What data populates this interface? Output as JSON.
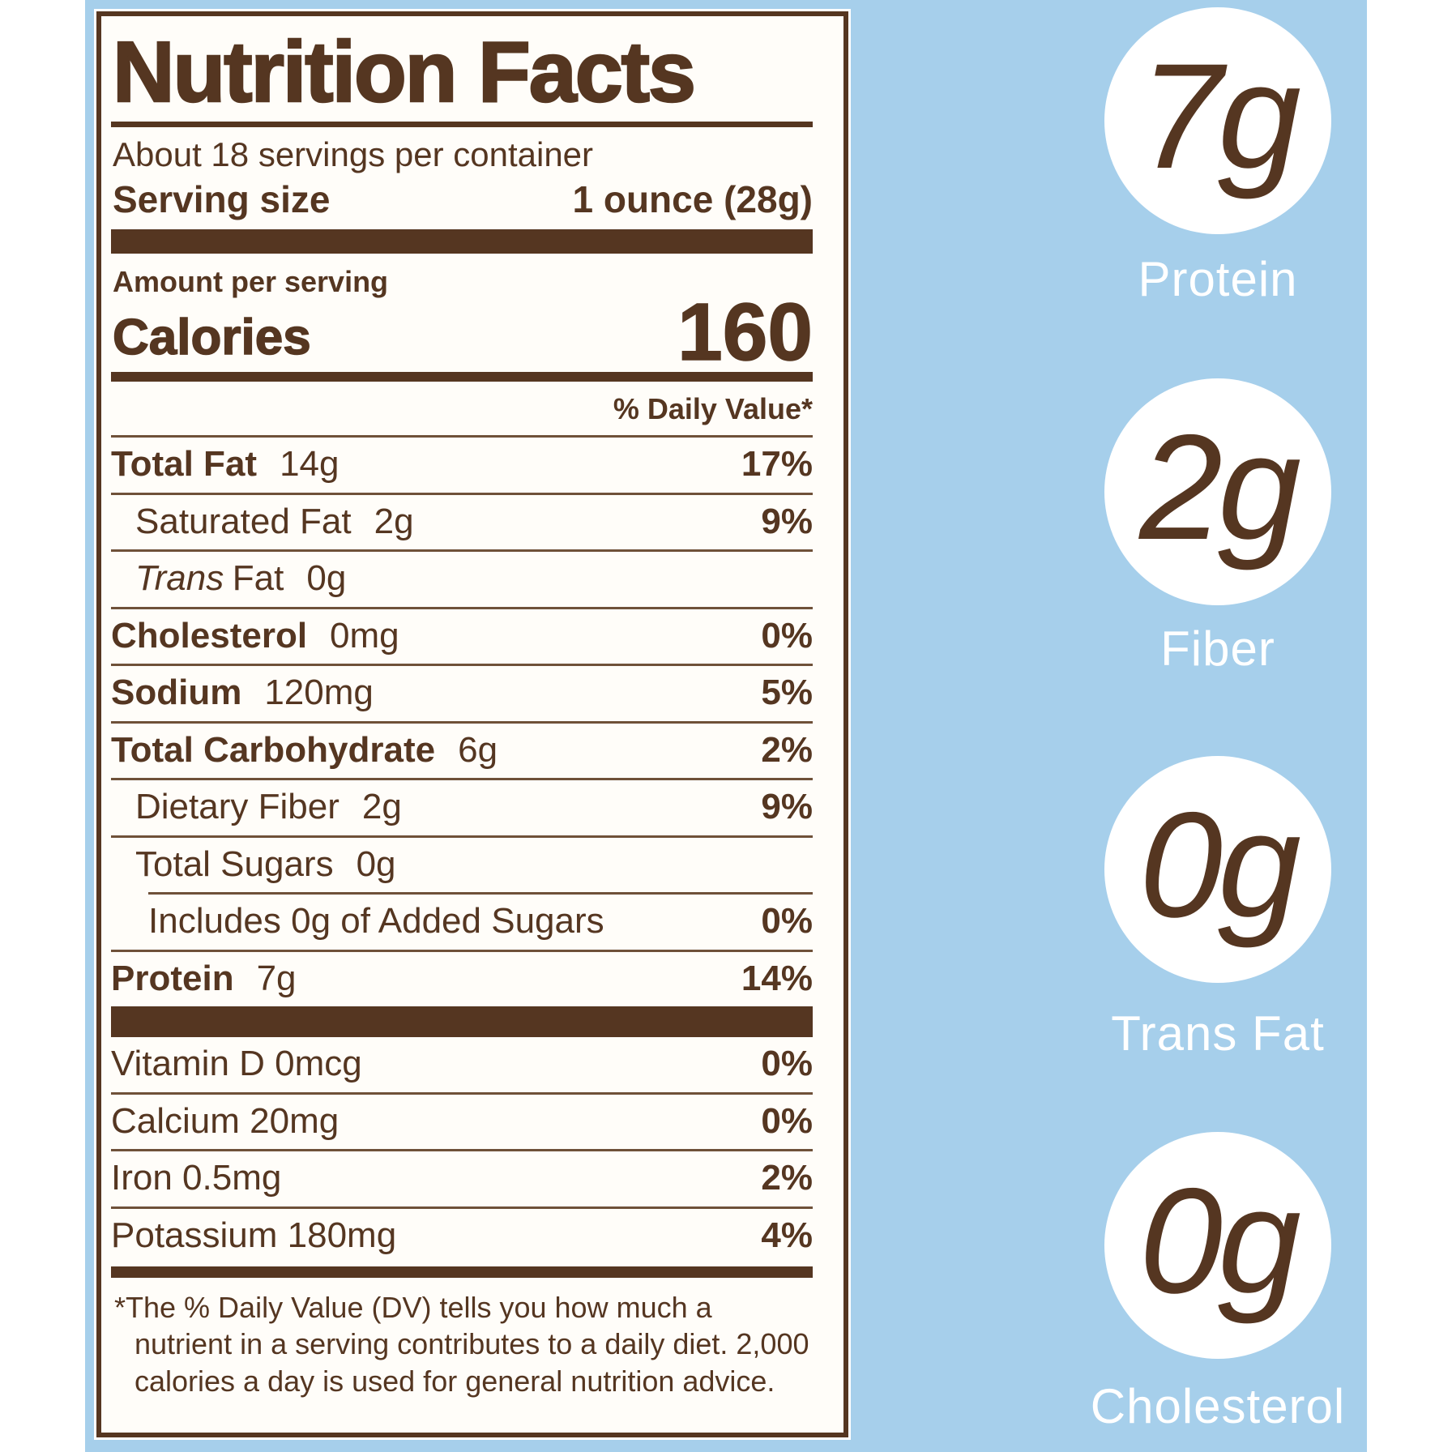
{
  "colors": {
    "brown": "#553621",
    "blue": "#a6cfeb",
    "card_background": "#fffdf9"
  },
  "label": {
    "title": "Nutrition Facts",
    "servings_per_container": "About 18 servings per container",
    "serving_size_label": "Serving size",
    "serving_size_value": "1 ounce (28g)",
    "amount_per_serving": "Amount per serving",
    "calories_label": "Calories",
    "calories_value": "160",
    "daily_value_header": "% Daily Value*",
    "rows": [
      {
        "name": "Total Fat",
        "amount": "14g",
        "dv": "17%"
      },
      {
        "name": "Saturated Fat",
        "amount": "2g",
        "dv": "9%"
      },
      {
        "name_italic": "Trans",
        "name": "Fat",
        "amount": "0g",
        "dv": ""
      },
      {
        "name": "Cholesterol",
        "amount": "0mg",
        "dv": "0%"
      },
      {
        "name": "Sodium",
        "amount": "120mg",
        "dv": "5%"
      },
      {
        "name": "Total Carbohydrate",
        "amount": "6g",
        "dv": "2%"
      },
      {
        "name": "Dietary Fiber",
        "amount": "2g",
        "dv": "9%"
      },
      {
        "name": "Total Sugars",
        "amount": "0g",
        "dv": ""
      },
      {
        "name": "Includes 0g of Added Sugars",
        "amount": "",
        "dv": "0%"
      },
      {
        "name": "Protein",
        "amount": "7g",
        "dv": "14%"
      }
    ],
    "micronutrients": [
      {
        "name": "Vitamin D 0mcg",
        "dv": "0%"
      },
      {
        "name": "Calcium 20mg",
        "dv": "0%"
      },
      {
        "name": "Iron 0.5mg",
        "dv": "2%"
      },
      {
        "name": "Potassium 180mg",
        "dv": "4%"
      }
    ],
    "footnote": "*The % Daily Value (DV) tells you how much a nutrient in a serving contributes to a daily diet. 2,000 calories a day is used for general nutrition advice."
  },
  "highlights": [
    {
      "value": "7g",
      "label": "Protein"
    },
    {
      "value": "2g",
      "label": "Fiber"
    },
    {
      "value": "0g",
      "label": "Trans Fat"
    },
    {
      "value": "0g",
      "label": "Cholesterol"
    }
  ]
}
